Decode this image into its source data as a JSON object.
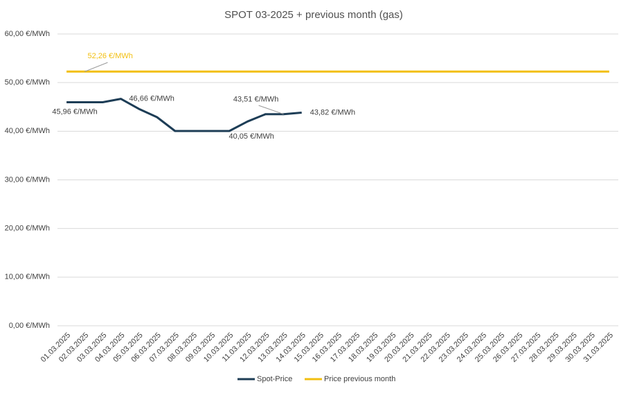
{
  "chart_data": {
    "type": "line",
    "title": "SPOT 03-2025 + previous month (gas)",
    "categories": [
      "01.03.2025",
      "02.03.2025",
      "03.03.2025",
      "04.03.2025",
      "05.03.2025",
      "06.03.2025",
      "07.03.2025",
      "08.03.2025",
      "09.03.2025",
      "10.03.2025",
      "11.03.2025",
      "12.03.2025",
      "13.03.2025",
      "14.03.2025",
      "15.03.2025",
      "16.03.2025",
      "17.03.2025",
      "18.03.2025",
      "19.03.2025",
      "20.03.2025",
      "21.03.2025",
      "22.03.2025",
      "23.03.2025",
      "24.03.2025",
      "25.03.2025",
      "26.03.2025",
      "27.03.2025",
      "28.03.2025",
      "29.03.2025",
      "30.03.2025",
      "31.03.2025"
    ],
    "series": [
      {
        "name": "Spot-Price",
        "color": "#1d3d56",
        "values": [
          45.96,
          45.96,
          45.96,
          46.66,
          44.6,
          42.9,
          40.05,
          40.05,
          40.05,
          40.05,
          42.0,
          43.51,
          43.51,
          43.82,
          null,
          null,
          null,
          null,
          null,
          null,
          null,
          null,
          null,
          null,
          null,
          null,
          null,
          null,
          null,
          null,
          null
        ],
        "value_labels": [
          "45,96 €/MWh",
          null,
          null,
          "46,66 €/MWh",
          null,
          null,
          null,
          null,
          null,
          "40,05 €/MWh",
          null,
          null,
          "43,51 €/MWh",
          "43,82 €/MWh",
          null,
          null,
          null,
          null,
          null,
          null,
          null,
          null,
          null,
          null,
          null,
          null,
          null,
          null,
          null,
          null,
          null
        ]
      },
      {
        "name": "Price previous month",
        "color": "#f2bf10",
        "values": [
          52.26,
          52.26,
          52.26,
          52.26,
          52.26,
          52.26,
          52.26,
          52.26,
          52.26,
          52.26,
          52.26,
          52.26,
          52.26,
          52.26,
          52.26,
          52.26,
          52.26,
          52.26,
          52.26,
          52.26,
          52.26,
          52.26,
          52.26,
          52.26,
          52.26,
          52.26,
          52.26,
          52.26,
          52.26,
          52.26,
          52.26
        ],
        "value_labels": [
          null,
          "52,26 €/MWh",
          null,
          null,
          null,
          null,
          null,
          null,
          null,
          null,
          null,
          null,
          null,
          null,
          null,
          null,
          null,
          null,
          null,
          null,
          null,
          null,
          null,
          null,
          null,
          null,
          null,
          null,
          null,
          null,
          null
        ]
      }
    ],
    "ylim": [
      0,
      60
    ],
    "yticks": [
      {
        "value": 0,
        "label": "0,00 €/MWh"
      },
      {
        "value": 10,
        "label": "10,00 €/MWh"
      },
      {
        "value": 20,
        "label": "20,00 €/MWh"
      },
      {
        "value": 30,
        "label": "30,00 €/MWh"
      },
      {
        "value": 40,
        "label": "40,00 €/MWh"
      },
      {
        "value": 50,
        "label": "50,00 €/MWh"
      },
      {
        "value": 60,
        "label": "60,00 €/MWh"
      }
    ],
    "grid": true,
    "legend": "bottom"
  }
}
